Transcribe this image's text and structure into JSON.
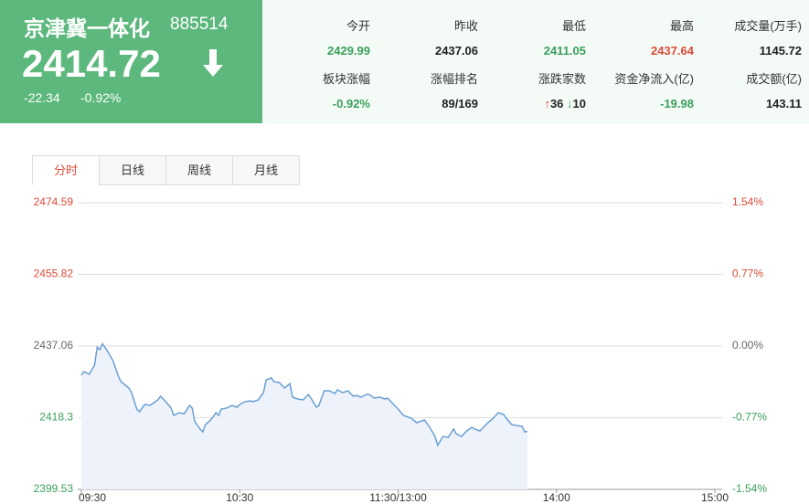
{
  "header": {
    "name": "京津冀一体化",
    "code": "885514",
    "price": "2414.72",
    "change": "-22.34",
    "change_pct": "-0.92%",
    "stats": [
      {
        "label": "今开",
        "value": "2429.99"
      },
      {
        "label": "昨收",
        "value": "2437.06"
      },
      {
        "label": "最低",
        "value": "2411.05"
      },
      {
        "label": "最高",
        "value": "2437.64"
      },
      {
        "label": "成交量(万手)",
        "value": "1145.72"
      },
      {
        "label": "板块涨幅",
        "value": "-0.92%"
      },
      {
        "label": "涨幅排名",
        "value": "89/169"
      },
      {
        "label": "涨跌家数",
        "up": "36",
        "down": "10"
      },
      {
        "label": "资金净流入(亿)",
        "value": "-19.98"
      },
      {
        "label": "成交额(亿)",
        "value": "143.11"
      }
    ]
  },
  "tabs": [
    "分时",
    "日线",
    "周线",
    "月线"
  ],
  "chart_data": {
    "type": "line",
    "color": "#6a9fd4",
    "fill": "#eef3fb",
    "x": [
      0,
      1,
      3,
      5,
      6,
      7,
      8,
      10,
      12,
      14,
      15,
      18,
      19,
      21,
      22,
      24,
      26,
      27,
      29,
      30,
      32,
      34,
      35,
      37,
      39,
      41,
      42,
      43,
      45,
      46,
      47,
      49,
      51,
      52,
      53,
      55,
      57,
      59,
      60,
      62,
      64,
      65,
      67,
      69,
      70,
      72,
      73,
      75,
      77,
      79,
      80,
      82,
      84,
      86,
      87,
      89,
      90,
      92,
      94,
      96,
      97,
      99,
      101,
      103,
      104,
      106,
      108,
      109,
      111,
      113,
      115,
      116,
      118,
      120,
      122,
      123,
      125,
      127,
      128,
      130,
      132,
      134,
      135,
      137,
      139,
      141,
      142,
      144,
      146,
      148,
      149,
      151,
      153,
      154,
      156,
      158,
      160,
      161,
      163,
      165,
      167,
      168,
      169
    ],
    "values": [
      2429.41,
      2430.37,
      2429.65,
      2432.04,
      2436.82,
      2436.1,
      2437.64,
      2435.62,
      2433.23,
      2429.17,
      2427.74,
      2426.06,
      2424.87,
      2420.56,
      2419.85,
      2421.76,
      2421.52,
      2422.0,
      2422.96,
      2423.91,
      2422.48,
      2420.8,
      2418.89,
      2419.61,
      2419.37,
      2421.52,
      2420.8,
      2417.22,
      2415.31,
      2414.59,
      2416.5,
      2417.7,
      2419.61,
      2418.89,
      2420.56,
      2420.8,
      2421.52,
      2421.04,
      2421.76,
      2422.48,
      2422.72,
      2422.48,
      2422.96,
      2424.87,
      2428.21,
      2428.69,
      2427.74,
      2427.5,
      2426.06,
      2427.26,
      2423.67,
      2423.19,
      2422.96,
      2424.39,
      2423.43,
      2421.04,
      2421.52,
      2425.35,
      2425.35,
      2424.63,
      2425.58,
      2424.87,
      2425.35,
      2423.91,
      2424.15,
      2423.67,
      2424.39,
      2424.39,
      2423.43,
      2423.67,
      2423.19,
      2423.43,
      2422.0,
      2420.56,
      2418.89,
      2418.65,
      2418.17,
      2416.98,
      2417.22,
      2417.7,
      2415.78,
      2413.39,
      2411.05,
      2413.39,
      2413.15,
      2415.31,
      2414.11,
      2413.39,
      2414.83,
      2415.78,
      2415.31,
      2414.83,
      2416.26,
      2416.98,
      2418.17,
      2419.61,
      2419.13,
      2418.17,
      2416.5,
      2416.26,
      2416.02,
      2414.59,
      2414.72
    ],
    "xlim": [
      0,
      240
    ],
    "xticks": [
      {
        "value": 0,
        "label": "09:30"
      },
      {
        "value": 60,
        "label": "10:30"
      },
      {
        "value": 120,
        "label": "11:30/13:00"
      },
      {
        "value": 180,
        "label": "14:00"
      },
      {
        "value": 240,
        "label": "15:00"
      }
    ],
    "ylim": [
      2399.53,
      2474.59
    ],
    "yticks": [
      2399.53,
      2418.3,
      2437.06,
      2455.82,
      2474.59
    ],
    "y2lim": [
      -1.54,
      1.54
    ],
    "y2ticks": [
      {
        "value": -1.54,
        "label": "-1.54%"
      },
      {
        "value": -0.77,
        "label": "-0.77%"
      },
      {
        "value": 0,
        "label": "0.00%"
      },
      {
        "value": 0.77,
        "label": "0.77%"
      },
      {
        "value": 1.54,
        "label": "1.54%"
      }
    ],
    "grid": true
  }
}
